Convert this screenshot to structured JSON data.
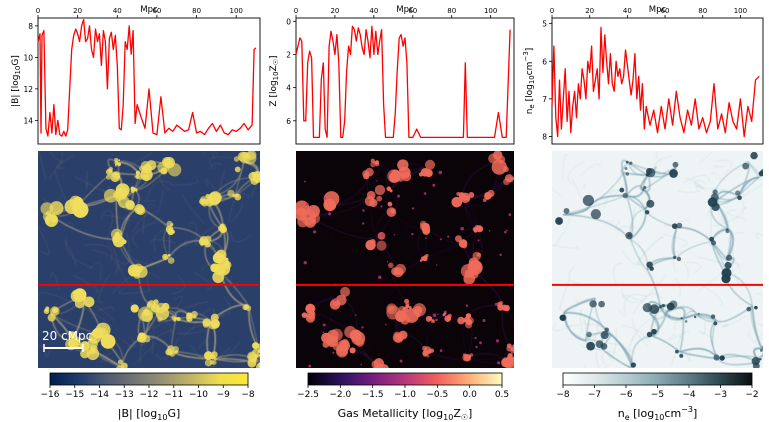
{
  "figure": {
    "scale_bar_label": "20 cMpc"
  },
  "chart_data": [
    {
      "type": "line",
      "panel": "magnetic-field",
      "xlabel": "Mpc",
      "ylabel_html": "|B|  [log<tspan font-size='7' dy='2'>10</tspan><tspan dy='-2'>G]</tspan>",
      "xticks": [
        0,
        20,
        40,
        60,
        80,
        100
      ],
      "yticks": [
        8,
        10,
        12,
        14
      ],
      "xlim": [
        0,
        112
      ],
      "ylim": [
        7.5,
        15.5
      ],
      "y_inverted": true,
      "color": "#ff0000",
      "x": [
        0,
        1,
        1.5,
        2,
        3,
        4,
        5,
        6,
        7,
        8,
        9,
        10,
        11,
        12,
        13,
        14,
        15,
        16,
        17,
        18,
        19,
        20,
        21,
        22,
        23,
        24,
        25,
        26,
        27,
        28,
        29,
        30,
        31,
        32,
        33,
        34,
        35,
        36,
        37,
        38,
        39,
        40,
        41,
        42,
        43,
        44,
        45,
        46,
        47,
        48,
        49,
        50,
        52,
        54,
        56,
        58,
        60,
        62,
        64,
        66,
        68,
        70,
        72,
        74,
        76,
        78,
        80,
        82,
        84,
        86,
        88,
        90,
        92,
        94,
        96,
        98,
        100,
        102,
        104,
        106,
        108,
        109,
        110
      ],
      "y": [
        9.0,
        8.5,
        14.8,
        8.6,
        8.3,
        14.5,
        15.0,
        13.5,
        14.8,
        13.0,
        14.9,
        14.0,
        14.9,
        15.0,
        14.7,
        15.0,
        14.6,
        12.0,
        9.5,
        8.6,
        8.2,
        8.5,
        9.0,
        8.0,
        7.6,
        9.0,
        8.8,
        8.0,
        9.5,
        10.0,
        8.2,
        9.0,
        8.5,
        10.5,
        8.3,
        9.0,
        12.0,
        8.8,
        8.4,
        9.5,
        8.6,
        10.5,
        14.5,
        14.6,
        13.0,
        9.0,
        9.5,
        8.0,
        9.8,
        8.3,
        14.2,
        13.0,
        13.8,
        14.5,
        12.0,
        14.8,
        14.9,
        12.5,
        14.8,
        14.5,
        14.7,
        14.3,
        14.5,
        14.7,
        14.6,
        13.5,
        14.8,
        14.7,
        14.9,
        14.5,
        14.2,
        14.7,
        14.3,
        14.8,
        14.9,
        14.6,
        14.7,
        14.5,
        14.2,
        14.6,
        14.3,
        9.5,
        9.4
      ]
    },
    {
      "type": "line",
      "panel": "metallicity",
      "xlabel": "Mpc",
      "ylabel_html": "Z  [log<tspan font-size='7' dy='2'>10</tspan><tspan dy='-2'>Z</tspan><tspan font-size='7' dy='2'>☉</tspan><tspan dy='-2'>]</tspan>",
      "xticks": [
        0,
        20,
        40,
        60,
        80,
        100
      ],
      "yticks": [
        0,
        2,
        4,
        6
      ],
      "xlim": [
        0,
        112
      ],
      "ylim": [
        -0.2,
        7.4
      ],
      "y_inverted": true,
      "color": "#ff0000",
      "x": [
        0,
        2,
        3,
        4,
        5,
        6,
        7,
        8,
        9,
        10,
        11,
        12,
        13,
        14,
        15,
        16,
        17,
        18,
        19,
        20,
        21,
        22,
        23,
        24,
        25,
        26,
        27,
        28,
        29,
        30,
        31,
        32,
        33,
        34,
        35,
        36,
        37,
        38,
        39,
        40,
        41,
        42,
        43,
        44,
        45,
        46,
        47,
        48,
        49,
        50,
        51,
        52,
        53,
        54,
        55,
        56,
        57,
        58,
        60,
        62,
        64,
        66,
        68,
        70,
        72,
        74,
        76,
        78,
        80,
        82,
        84,
        86,
        87,
        88,
        90,
        92,
        94,
        96,
        98,
        100,
        102,
        104,
        106,
        108,
        110
      ],
      "y": [
        2.0,
        1.0,
        1.2,
        6.0,
        6.0,
        2.5,
        1.8,
        2.2,
        7.0,
        7.0,
        7.0,
        7.0,
        3.5,
        2.5,
        6.5,
        7.0,
        1.5,
        0.6,
        1.2,
        2.0,
        0.8,
        2.5,
        7.0,
        7.0,
        6.0,
        3.0,
        1.5,
        2.0,
        0.3,
        0.5,
        1.2,
        0.4,
        0.8,
        1.6,
        2.0,
        0.5,
        1.2,
        2.2,
        0.3,
        2.0,
        0.6,
        2.0,
        1.2,
        0.5,
        5.0,
        7.0,
        7.0,
        7.0,
        7.0,
        7.0,
        5.5,
        3.0,
        1.0,
        0.8,
        1.5,
        1.0,
        2.5,
        7.0,
        7.0,
        6.5,
        7.0,
        7.0,
        7.0,
        7.0,
        7.0,
        7.0,
        7.0,
        7.0,
        7.0,
        7.0,
        7.0,
        7.0,
        2.5,
        7.0,
        7.0,
        7.0,
        7.0,
        7.0,
        7.0,
        7.0,
        7.0,
        5.5,
        7.0,
        7.0,
        0.5
      ]
    },
    {
      "type": "line",
      "panel": "electron-density",
      "xlabel": "Mpc",
      "ylabel_html": "n<tspan font-size='7' dy='2'>e</tspan><tspan dy='-2'>  [log</tspan><tspan font-size='7' dy='2'>10</tspan><tspan dy='-2'>cm</tspan><tspan font-size='7' dy='-4'>−3</tspan><tspan dy='4'>]</tspan>",
      "xticks": [
        0,
        20,
        40,
        60,
        80,
        100
      ],
      "yticks": [
        5,
        6,
        7,
        8
      ],
      "xlim": [
        0,
        112
      ],
      "ylim": [
        4.85,
        8.2
      ],
      "y_inverted": true,
      "color": "#ff0000",
      "x": [
        0,
        1,
        2,
        3,
        4,
        5,
        6,
        7,
        8,
        9,
        10,
        11,
        12,
        13,
        14,
        15,
        16,
        17,
        18,
        19,
        20,
        21,
        22,
        23,
        24,
        25,
        26,
        27,
        28,
        29,
        30,
        31,
        32,
        33,
        34,
        35,
        36,
        37,
        38,
        39,
        40,
        41,
        42,
        43,
        44,
        45,
        46,
        47,
        48,
        49,
        50,
        52,
        54,
        56,
        58,
        60,
        62,
        64,
        66,
        68,
        70,
        72,
        74,
        76,
        78,
        80,
        82,
        84,
        86,
        88,
        90,
        92,
        94,
        96,
        98,
        100,
        102,
        104,
        106,
        108,
        110
      ],
      "y": [
        7.2,
        5.6,
        7.5,
        8.0,
        6.5,
        7.8,
        7.0,
        6.2,
        7.6,
        6.8,
        7.9,
        7.2,
        6.8,
        7.5,
        6.6,
        7.0,
        6.2,
        6.5,
        7.0,
        6.0,
        6.3,
        5.6,
        6.8,
        6.5,
        6.2,
        7.0,
        5.1,
        6.3,
        5.3,
        6.0,
        6.6,
        5.8,
        6.6,
        6.8,
        6.0,
        6.4,
        6.2,
        6.6,
        6.4,
        5.7,
        6.1,
        6.5,
        6.9,
        6.5,
        5.8,
        7.0,
        6.4,
        7.3,
        6.6,
        7.8,
        7.2,
        7.7,
        7.3,
        7.9,
        7.2,
        7.8,
        7.0,
        7.7,
        6.8,
        7.5,
        7.9,
        7.3,
        7.7,
        7.0,
        7.8,
        7.5,
        7.9,
        7.6,
        6.6,
        7.8,
        7.4,
        7.9,
        7.1,
        7.6,
        7.8,
        7.0,
        8.0,
        7.2,
        7.6,
        6.5,
        6.4
      ]
    }
  ],
  "maps": [
    {
      "name": "magnetic-field-map",
      "background": "#2a3f6a",
      "filament_color": "#b9ad84",
      "knot_color": "#f0dd5c"
    },
    {
      "name": "metallicity-map",
      "background": "#0a0408",
      "filament_color": "#2c0d3a",
      "knot_color": "#f06c5a"
    },
    {
      "name": "electron-density-map",
      "background": "#eef4f5",
      "filament_color": "#6f9aa8",
      "knot_color": "#22414f"
    }
  ],
  "colorbars": [
    {
      "label_html": "|B|  [log<tspan font-size='8' dy='3'>10</tspan><tspan dy='-3'>G]</tspan>",
      "ticks": [
        "−16",
        "−15",
        "−14",
        "−13",
        "−12",
        "−11",
        "−10",
        "−9",
        "−8"
      ],
      "colors": [
        "#00204c",
        "#1f3a6e",
        "#4e5a72",
        "#727574",
        "#979271",
        "#c2b466",
        "#f0dd4f",
        "#fde737"
      ]
    },
    {
      "label_html": "Gas Metallicity  [log<tspan font-size='8' dy='3'>10</tspan><tspan dy='-3'>Z</tspan><tspan font-size='8' dy='3'>☉</tspan><tspan dy='-3'>]</tspan>",
      "ticks": [
        "−2.5",
        "−2.0",
        "−1.5",
        "−1.0",
        "−0.5",
        "0.0",
        "0.5"
      ],
      "colors": [
        "#000004",
        "#2c115f",
        "#721f81",
        "#b73779",
        "#f1605d",
        "#feb078",
        "#fcfdbf"
      ]
    },
    {
      "label_html": "n<tspan font-size='8' dy='3'>e</tspan><tspan dy='-3'>  [log</tspan><tspan font-size='8' dy='3'>10</tspan><tspan dy='-3'>cm</tspan><tspan font-size='8' dy='-5'>−3</tspan><tspan dy='5'>]</tspan>",
      "ticks": [
        "−8",
        "−7",
        "−6",
        "−5",
        "−4",
        "−3",
        "−2"
      ],
      "colors": [
        "#ffffff",
        "#dfe9eb",
        "#b7cdd2",
        "#8aa9b2",
        "#5b7c86",
        "#2f4750",
        "#0a0f12"
      ]
    }
  ]
}
